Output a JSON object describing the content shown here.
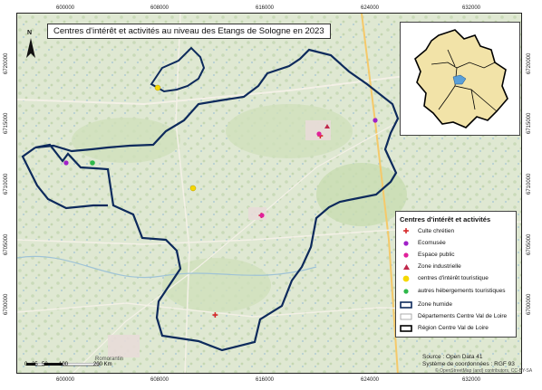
{
  "map": {
    "title": "Centres d'intérêt et activités au niveau des Etangs de Sologne en 2023",
    "x_ticks": [
      "600000",
      "608000",
      "616000",
      "624000",
      "632000"
    ],
    "y_ticks": [
      "6720000",
      "6715000",
      "6710000",
      "6705000",
      "6700000"
    ],
    "north_label": "N",
    "place_labels": [
      "Romorantin"
    ],
    "colors": {
      "zone_humide": "#0d2a5c",
      "culte_chretien": "#d62728",
      "ecomusee": "#a020c8",
      "espace_public": "#e0209a",
      "zone_industrielle": "#c0284b",
      "centres_interet": "#f5d800",
      "autres_hebergements": "#2fb84a"
    }
  },
  "legend": {
    "title": "Centres d'intérêt et activités",
    "items": [
      {
        "label": "Culte chrétien"
      },
      {
        "label": "Ecomusée"
      },
      {
        "label": "Espace public"
      },
      {
        "label": "Zone industrielle"
      },
      {
        "label": "centres d'intérêt touristique"
      },
      {
        "label": "autres hébergements touristiques"
      },
      {
        "label": "Zone humide"
      },
      {
        "label": "Départements Centre Val de Loire"
      },
      {
        "label": "Région Centre Val de Loire"
      }
    ]
  },
  "scale": {
    "labels": [
      "0",
      "25",
      "50",
      "100",
      "200 Km"
    ]
  },
  "footer": {
    "source": "Source : Open Data 41",
    "crs": "Système de coordonnées : RGF 93",
    "attribution": "© OpenStreetMap (and) contributors, CC-BY-SA"
  }
}
